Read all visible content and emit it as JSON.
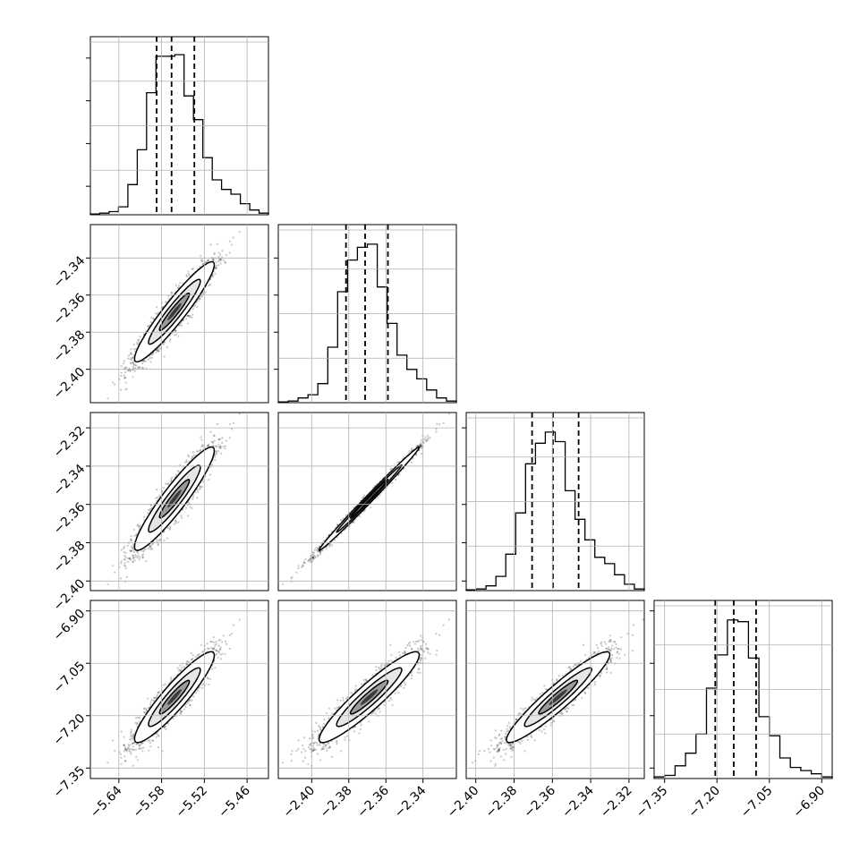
{
  "chart_data": {
    "type": "corner",
    "grid": true,
    "variables": [
      {
        "range": [
          -5.68,
          -5.43
        ],
        "ticks": [
          -5.64,
          -5.58,
          -5.52,
          -5.46
        ],
        "tick_labels": [
          "−5.64",
          "−5.58",
          "−5.52",
          "−5.46"
        ]
      },
      {
        "range": [
          -2.418,
          -2.322
        ],
        "ticks": [
          -2.4,
          -2.38,
          -2.36,
          -2.34
        ],
        "tick_labels": [
          "−2.40",
          "−2.38",
          "−2.36",
          "−2.34"
        ]
      },
      {
        "range": [
          -2.405,
          -2.312
        ],
        "ticks": [
          -2.4,
          -2.38,
          -2.36,
          -2.34,
          -2.32
        ],
        "tick_labels": [
          "−2.40",
          "−2.38",
          "−2.36",
          "−2.34",
          "−2.32"
        ]
      },
      {
        "range": [
          -7.38,
          -6.87
        ],
        "ticks": [
          -7.35,
          -7.2,
          -7.05,
          -6.9
        ],
        "tick_labels": [
          "−7.35",
          "−7.20",
          "−7.05",
          "−6.90"
        ]
      }
    ],
    "marginals": [
      {
        "quantiles": [
          -5.587,
          -5.566,
          -5.534
        ],
        "heights": [
          0.005,
          0.01,
          0.02,
          0.05,
          0.19,
          0.41,
          0.77,
          1.0,
          1.0,
          1.01,
          0.75,
          0.6,
          0.36,
          0.22,
          0.16,
          0.13,
          0.07,
          0.03,
          0.01
        ]
      },
      {
        "quantiles": [
          -2.3815,
          -2.3712,
          -2.3589
        ],
        "heights": [
          0.005,
          0.01,
          0.03,
          0.05,
          0.12,
          0.35,
          0.7,
          0.9,
          0.98,
          1.0,
          0.73,
          0.5,
          0.3,
          0.21,
          0.15,
          0.08,
          0.03,
          0.01
        ]
      },
      {
        "quantiles": [
          -2.3706,
          -2.3597,
          -2.3463
        ],
        "heights": [
          0.005,
          0.01,
          0.03,
          0.09,
          0.23,
          0.49,
          0.8,
          0.93,
          1.0,
          0.94,
          0.63,
          0.45,
          0.32,
          0.21,
          0.17,
          0.1,
          0.04,
          0.01
        ]
      },
      {
        "quantiles": [
          -7.205,
          -7.152,
          -7.088
        ],
        "heights": [
          0.01,
          0.02,
          0.08,
          0.16,
          0.28,
          0.57,
          0.78,
          1.0,
          0.99,
          0.76,
          0.39,
          0.27,
          0.13,
          0.07,
          0.05,
          0.03,
          0.01
        ]
      }
    ]
  }
}
